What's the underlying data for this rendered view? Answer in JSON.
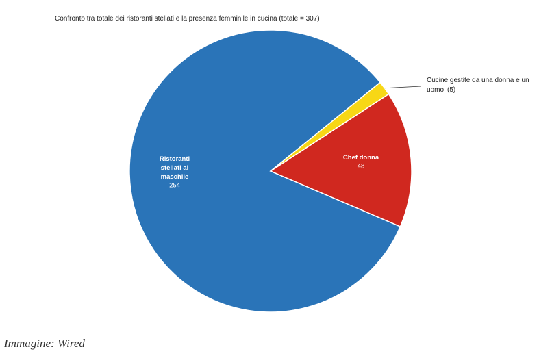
{
  "chart_data": {
    "type": "pie",
    "title": "Confronto tra totale dei ristoranti stellati e la presenza femminile in cucina (totale = 307)",
    "categories": [
      "Ristoranti stellati al maschile",
      "Chef donna",
      "Cucine gestite da una donna e un uomo"
    ],
    "values": [
      254,
      48,
      5
    ],
    "value_labels": [
      "254",
      "48",
      "(5)"
    ],
    "colors": [
      "#2a74b8",
      "#d0281f",
      "#f7d716"
    ]
  },
  "caption": "Immagine: Wired"
}
